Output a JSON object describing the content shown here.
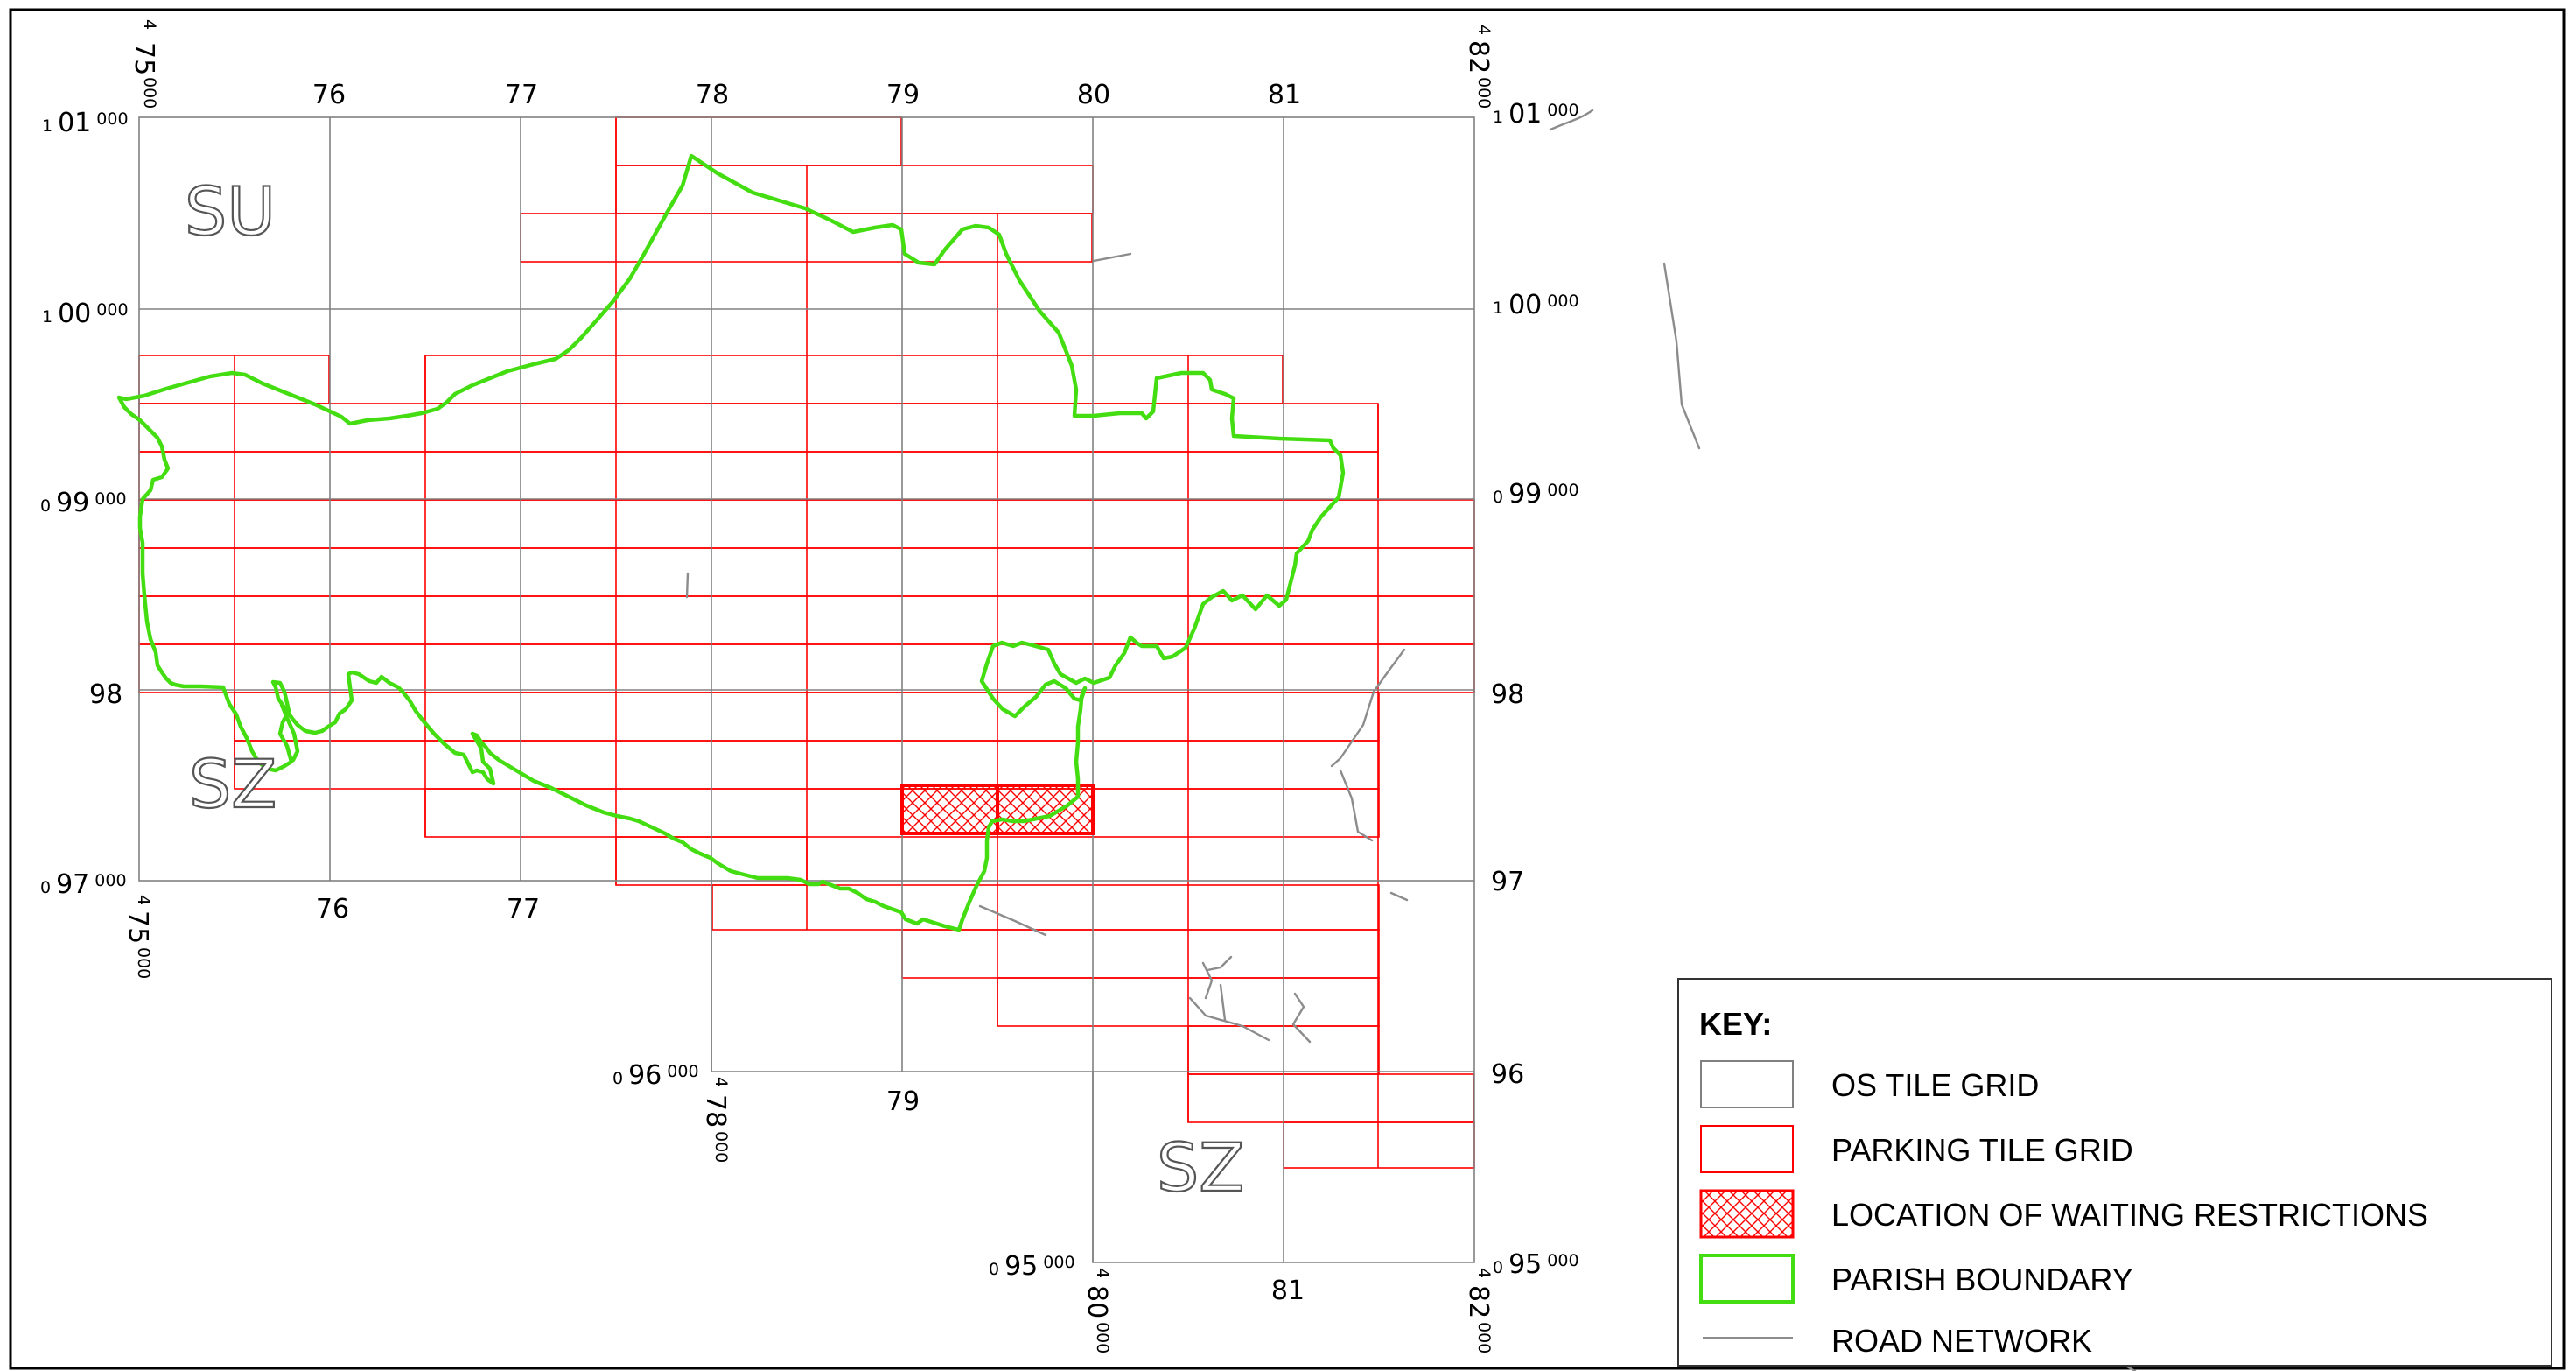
{
  "zones": {
    "su": "SU",
    "sz_west": "SZ",
    "sz_south": "SZ"
  },
  "top_axis": {
    "left_prefix": "4",
    "left_value": "75",
    "left_suffix": "000",
    "right_prefix": "4",
    "right_value": "82",
    "right_suffix": "000",
    "ticks": [
      "76",
      "77",
      "78",
      "79",
      "80",
      "81"
    ]
  },
  "bottom_axis": {
    "left_prefix": "4",
    "left_value": "75",
    "left_suffix": "000",
    "ticks": [
      "76",
      "77"
    ]
  },
  "bottom_axis_2": {
    "prefix": "4",
    "value": "78",
    "suffix": "000",
    "tick": "79"
  },
  "bottom_axis_3": {
    "prefix": "4",
    "value": "80",
    "suffix": "000",
    "tick": "81",
    "right_prefix": "4",
    "right_value": "82",
    "right_suffix": "000"
  },
  "left_axis": {
    "n101": {
      "prefix": "1",
      "value": "01",
      "suffix": "000"
    },
    "n100": {
      "prefix": "1",
      "value": "00",
      "suffix": "000"
    },
    "n99": {
      "prefix": "0",
      "value": "99",
      "suffix": "000"
    },
    "n98": "98",
    "n97": {
      "prefix": "0",
      "value": "97",
      "suffix": "000"
    }
  },
  "right_axis": {
    "n101": {
      "prefix": "1",
      "value": "01",
      "suffix": "000"
    },
    "n100": {
      "prefix": "1",
      "value": "00",
      "suffix": "000"
    },
    "n99": {
      "prefix": "0",
      "value": "99",
      "suffix": "000"
    },
    "n98": "98",
    "n97": "97",
    "n96": "96",
    "n95": {
      "prefix": "0",
      "value": "95",
      "suffix": "000"
    }
  },
  "inner_axis": {
    "n96": {
      "prefix": "0",
      "value": "96",
      "suffix": "000"
    },
    "n95": {
      "prefix": "0",
      "value": "95",
      "suffix": "000"
    }
  },
  "key": {
    "title": "KEY:",
    "items": [
      {
        "label": "OS TILE GRID",
        "stroke": "#808080",
        "fill": "none"
      },
      {
        "label": "PARKING TILE GRID",
        "stroke": "#ff0000",
        "fill": "none"
      },
      {
        "label": "LOCATION OF WAITING RESTRICTIONS",
        "stroke": "#ff0000",
        "fill": "hatch"
      },
      {
        "label": "PARISH BOUNDARY",
        "stroke": "#44dd11",
        "fill": "none"
      },
      {
        "label": "ROAD NETWORK",
        "stroke": "#8c8c8c",
        "fill": "line"
      }
    ]
  },
  "colors": {
    "os_grid": "#808080",
    "parking_grid": "#ff0000",
    "parish_boundary": "#44dd11",
    "road": "#8c8c8c"
  }
}
